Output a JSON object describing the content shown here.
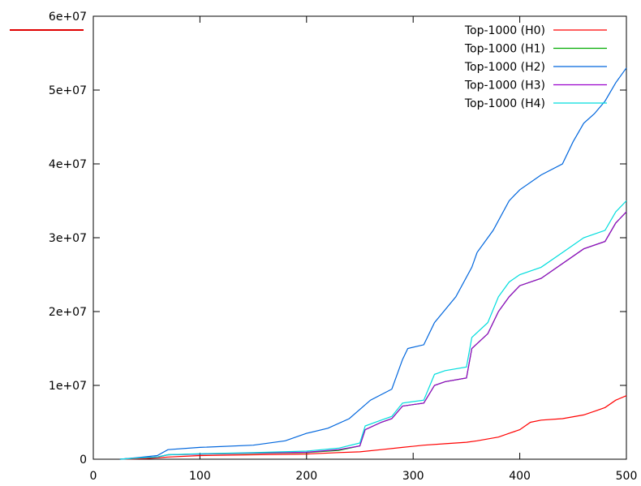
{
  "chart_data": {
    "type": "line",
    "title": "",
    "xlabel": "",
    "ylabel": "",
    "xlim": [
      0,
      500
    ],
    "ylim": [
      0,
      60000000
    ],
    "x_ticks": [
      0,
      100,
      200,
      300,
      400,
      500
    ],
    "x_tick_labels": [
      "0",
      "100",
      "200",
      "300",
      "400",
      "500"
    ],
    "y_ticks": [
      0,
      10000000,
      20000000,
      30000000,
      40000000,
      50000000,
      60000000
    ],
    "y_tick_labels": [
      "0",
      "1e+07",
      "2e+07",
      "3e+07",
      "4e+07",
      "5e+07",
      "6e+07"
    ],
    "grid": false,
    "legend_position": "top-right",
    "series": [
      {
        "name": "Top-1000 (H0)",
        "color": "#ff0000",
        "points": [
          [
            25,
            0
          ],
          [
            50,
            100000
          ],
          [
            70,
            300000
          ],
          [
            100,
            500000
          ],
          [
            150,
            600000
          ],
          [
            200,
            700000
          ],
          [
            230,
            900000
          ],
          [
            250,
            1000000
          ],
          [
            270,
            1300000
          ],
          [
            290,
            1600000
          ],
          [
            310,
            1900000
          ],
          [
            330,
            2100000
          ],
          [
            350,
            2300000
          ],
          [
            360,
            2500000
          ],
          [
            380,
            3000000
          ],
          [
            390,
            3500000
          ],
          [
            400,
            4000000
          ],
          [
            410,
            5000000
          ],
          [
            420,
            5300000
          ],
          [
            440,
            5500000
          ],
          [
            460,
            6000000
          ],
          [
            470,
            6500000
          ],
          [
            480,
            7000000
          ],
          [
            490,
            8000000
          ],
          [
            500,
            8600000
          ]
        ]
      },
      {
        "name": "Top-1000 (H1)",
        "color": "#00aa00",
        "points": [
          [
            25,
            0
          ],
          [
            40,
            150000
          ],
          [
            60,
            300000
          ],
          [
            70,
            600000
          ],
          [
            100,
            700000
          ],
          [
            150,
            800000
          ],
          [
            200,
            900000
          ],
          [
            230,
            1200000
          ],
          [
            250,
            1800000
          ],
          [
            255,
            4000000
          ],
          [
            270,
            5000000
          ],
          [
            280,
            5500000
          ],
          [
            290,
            7200000
          ],
          [
            310,
            7600000
          ],
          [
            320,
            10000000
          ],
          [
            330,
            10500000
          ],
          [
            350,
            11000000
          ],
          [
            355,
            15000000
          ],
          [
            370,
            17000000
          ],
          [
            380,
            20000000
          ],
          [
            390,
            22000000
          ],
          [
            400,
            23500000
          ],
          [
            420,
            24500000
          ],
          [
            440,
            26500000
          ],
          [
            460,
            28500000
          ],
          [
            480,
            29500000
          ],
          [
            490,
            32000000
          ],
          [
            500,
            33500000
          ]
        ]
      },
      {
        "name": "Top-1000 (H2)",
        "color": "#0066dd",
        "points": [
          [
            25,
            0
          ],
          [
            40,
            200000
          ],
          [
            60,
            500000
          ],
          [
            70,
            1300000
          ],
          [
            100,
            1600000
          ],
          [
            150,
            1900000
          ],
          [
            180,
            2500000
          ],
          [
            200,
            3500000
          ],
          [
            220,
            4200000
          ],
          [
            240,
            5500000
          ],
          [
            260,
            8000000
          ],
          [
            280,
            9500000
          ],
          [
            290,
            13500000
          ],
          [
            295,
            15000000
          ],
          [
            310,
            15500000
          ],
          [
            320,
            18500000
          ],
          [
            340,
            22000000
          ],
          [
            355,
            26000000
          ],
          [
            360,
            28000000
          ],
          [
            375,
            31000000
          ],
          [
            390,
            35000000
          ],
          [
            400,
            36500000
          ],
          [
            420,
            38500000
          ],
          [
            440,
            40000000
          ],
          [
            450,
            43000000
          ],
          [
            460,
            45500000
          ],
          [
            470,
            46800000
          ],
          [
            480,
            48500000
          ],
          [
            490,
            51000000
          ],
          [
            500,
            53000000
          ]
        ]
      },
      {
        "name": "Top-1000 (H3)",
        "color": "#9900cc",
        "points": [
          [
            25,
            0
          ],
          [
            40,
            150000
          ],
          [
            60,
            300000
          ],
          [
            70,
            600000
          ],
          [
            100,
            700000
          ],
          [
            150,
            850000
          ],
          [
            200,
            950000
          ],
          [
            230,
            1300000
          ],
          [
            250,
            1800000
          ],
          [
            255,
            4000000
          ],
          [
            270,
            5000000
          ],
          [
            280,
            5500000
          ],
          [
            290,
            7200000
          ],
          [
            310,
            7600000
          ],
          [
            320,
            10000000
          ],
          [
            330,
            10500000
          ],
          [
            350,
            11000000
          ],
          [
            355,
            15000000
          ],
          [
            370,
            17000000
          ],
          [
            380,
            20000000
          ],
          [
            390,
            22000000
          ],
          [
            400,
            23500000
          ],
          [
            420,
            24500000
          ],
          [
            440,
            26500000
          ],
          [
            460,
            28500000
          ],
          [
            480,
            29500000
          ],
          [
            490,
            32000000
          ],
          [
            500,
            33500000
          ]
        ]
      },
      {
        "name": "Top-1000 (H4)",
        "color": "#00dddd",
        "points": [
          [
            25,
            0
          ],
          [
            40,
            150000
          ],
          [
            60,
            300000
          ],
          [
            70,
            600000
          ],
          [
            100,
            750000
          ],
          [
            150,
            900000
          ],
          [
            200,
            1100000
          ],
          [
            230,
            1500000
          ],
          [
            250,
            2200000
          ],
          [
            255,
            4500000
          ],
          [
            270,
            5300000
          ],
          [
            280,
            5800000
          ],
          [
            290,
            7600000
          ],
          [
            310,
            8000000
          ],
          [
            320,
            11500000
          ],
          [
            330,
            12000000
          ],
          [
            350,
            12500000
          ],
          [
            355,
            16500000
          ],
          [
            370,
            18500000
          ],
          [
            380,
            22000000
          ],
          [
            390,
            24000000
          ],
          [
            400,
            25000000
          ],
          [
            420,
            26000000
          ],
          [
            440,
            28000000
          ],
          [
            460,
            30000000
          ],
          [
            480,
            31000000
          ],
          [
            490,
            33500000
          ],
          [
            500,
            35000000
          ]
        ]
      }
    ]
  }
}
